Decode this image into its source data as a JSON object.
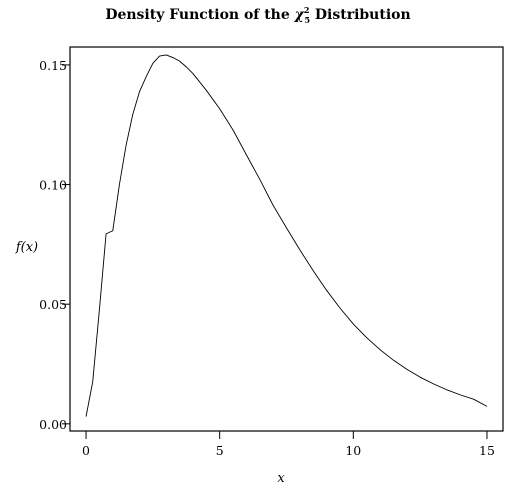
{
  "chart_data": {
    "type": "line",
    "title": {
      "prefix": "Density Function of the ",
      "chi": "χ",
      "sup": "2",
      "sub": "5",
      "suffix": " Distribution"
    },
    "xlabel": "x",
    "ylabel": "f(x)",
    "xlim": [
      -0.6,
      15.6
    ],
    "ylim": [
      -0.003,
      0.1575
    ],
    "xticks": [
      0,
      5,
      10,
      15
    ],
    "xtick_labels": [
      "0",
      "5",
      "10",
      "15"
    ],
    "yticks": [
      0.0,
      0.05,
      0.1,
      0.15
    ],
    "ytick_labels": [
      "0.00",
      "0.05",
      "0.10",
      "0.15"
    ],
    "grid": false,
    "legend": "none",
    "series": [
      {
        "x": [
          0.0,
          0.25,
          0.5,
          0.75,
          1.0,
          1.25,
          1.5,
          1.75,
          2.0,
          2.25,
          2.5,
          2.75,
          3.0,
          3.25,
          3.5,
          3.75,
          4.0,
          4.5,
          5.0,
          5.5,
          6.0,
          6.5,
          7.0,
          7.5,
          8.0,
          8.5,
          9.0,
          9.5,
          10.0,
          10.5,
          11.0,
          11.5,
          12.0,
          12.5,
          13.0,
          13.5,
          14.0,
          14.5,
          15.0
        ],
        "y": [
          0.003,
          0.0176,
          0.0477,
          0.0794,
          0.0807,
          0.1001,
          0.1165,
          0.1294,
          0.1388,
          0.1451,
          0.1507,
          0.1537,
          0.1542,
          0.1531,
          0.1516,
          0.1492,
          0.1464,
          0.1394,
          0.1317,
          0.1228,
          0.1124,
          0.1022,
          0.0913,
          0.0819,
          0.0727,
          0.064,
          0.0558,
          0.0484,
          0.0417,
          0.036,
          0.031,
          0.0266,
          0.0228,
          0.0195,
          0.0167,
          0.0142,
          0.0121,
          0.0103,
          0.0073
        ]
      }
    ]
  }
}
